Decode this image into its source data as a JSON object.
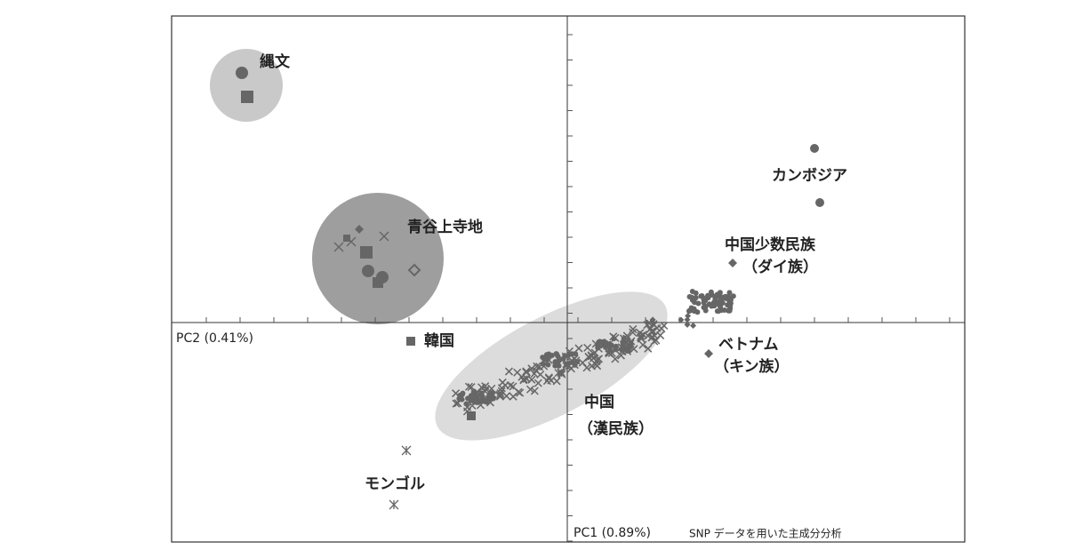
{
  "axes": {
    "x_label": "PC1 (0.89%)",
    "y_label": "PC2 (0.41%)"
  },
  "note": "SNP データを用いた主成分分析",
  "groups": [
    {
      "lines": [
        "縄文"
      ]
    },
    {
      "lines": [
        "青谷上寺地"
      ]
    },
    {
      "lines": [
        "カンボジア"
      ]
    },
    {
      "lines": [
        "中国少数民族",
        "（ダイ族）"
      ]
    },
    {
      "lines": [
        "ベトナム",
        "（キン族）"
      ]
    },
    {
      "lines": [
        "韓国"
      ]
    },
    {
      "lines": [
        "中国",
        "（漢民族）"
      ]
    },
    {
      "lines": [
        "モンゴル"
      ]
    }
  ]
}
